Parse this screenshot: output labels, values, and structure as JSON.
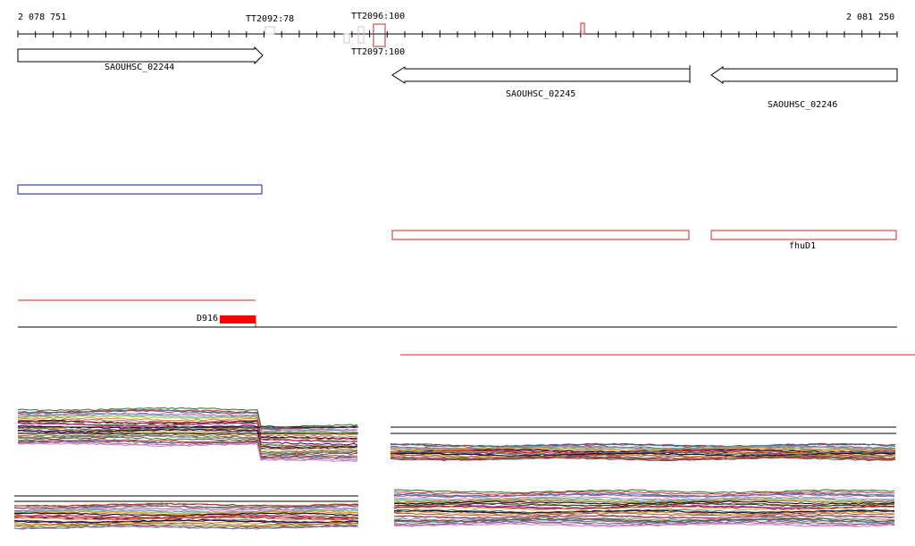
{
  "ruler": {
    "start_label": "2 078 751",
    "end_label": "2 081 250"
  },
  "terminators": [
    {
      "label": "TT2092:78"
    },
    {
      "label": "TT2096:100"
    },
    {
      "label": "TT2097:100"
    }
  ],
  "genes": [
    {
      "label": "SAOUHSC_02244",
      "strand": "+"
    },
    {
      "label": "SAOUHSC_02245",
      "strand": "-"
    },
    {
      "label": "SAOUHSC_02246",
      "strand": "-"
    }
  ],
  "operons": [
    {
      "label": "",
      "color": "#1a1aaa"
    },
    {
      "label": "",
      "color": "#dd2222"
    },
    {
      "label": "fhuD1",
      "color": "#dd2222"
    }
  ],
  "regulatory": {
    "label": "D916",
    "color": "#ff0000"
  },
  "expression_panels": [
    {
      "name": "top-left"
    },
    {
      "name": "top-right"
    },
    {
      "name": "bottom-left"
    },
    {
      "name": "bottom-right"
    }
  ]
}
